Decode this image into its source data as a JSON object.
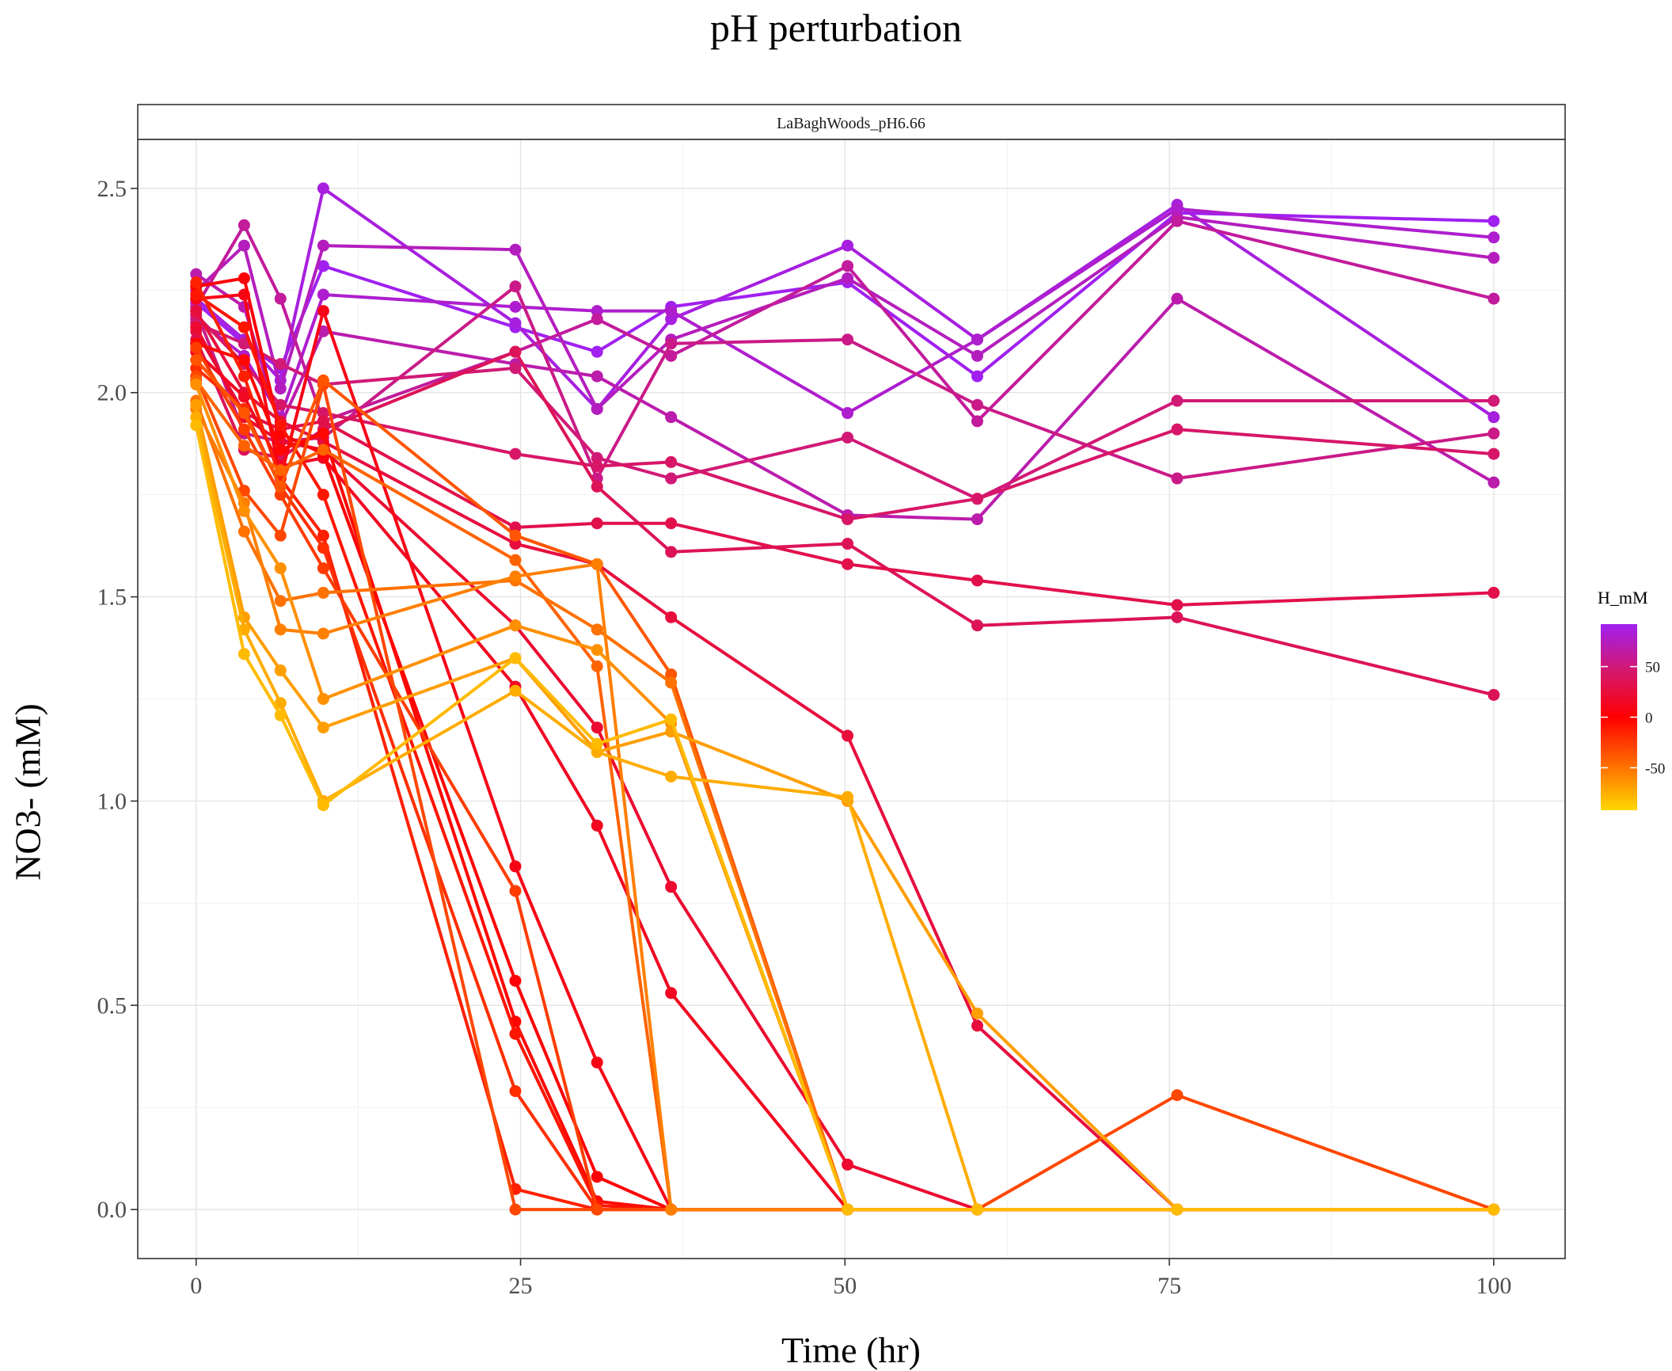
{
  "chart_data": {
    "type": "line",
    "title": "pH perturbation",
    "xlabel": "Time (hr)",
    "ylabel": "NO3- (mM)",
    "facet": "LaBaghWoods_pH6.66",
    "xlim": [
      -4.5,
      105.5
    ],
    "ylim": [
      -0.12,
      2.62
    ],
    "xticks": [
      0,
      25,
      50,
      75,
      100
    ],
    "yticks": [
      0.0,
      0.5,
      1.0,
      1.5,
      2.0,
      2.5
    ],
    "ytick_labels": [
      "0.0",
      "0.5",
      "1.0",
      "1.5",
      "2.0",
      "2.5"
    ],
    "grid": true,
    "legend": {
      "title": "H_mM",
      "position": "right",
      "type": "colorbar",
      "range": [
        -92,
        92
      ],
      "breaks": [
        50,
        0,
        -50
      ],
      "colors": [
        "#ffd700",
        "#ff6a00",
        "#ff0000",
        "#d4186e",
        "#a020f0"
      ]
    },
    "series": [
      {
        "h": 92,
        "x": [
          0,
          3.7,
          6.5,
          9.8,
          24.6,
          30.9,
          36.6,
          50.2,
          60.2,
          75.6,
          100
        ],
        "y": [
          2.22,
          2.12,
          2.06,
          2.31,
          2.16,
          2.1,
          2.21,
          2.27,
          2.04,
          2.44,
          2.42
        ]
      },
      {
        "h": 86,
        "x": [
          0,
          3.7,
          6.5,
          9.8,
          24.6,
          30.9,
          36.6,
          50.2,
          60.2,
          75.6,
          100
        ],
        "y": [
          2.23,
          2.13,
          2.03,
          2.5,
          2.17,
          1.96,
          2.18,
          2.36,
          2.13,
          2.46,
          1.94
        ]
      },
      {
        "h": 80,
        "x": [
          0,
          3.7,
          6.5,
          9.8,
          24.6,
          30.9,
          36.6,
          50.2,
          60.2,
          75.6,
          100
        ],
        "y": [
          2.18,
          2.09,
          1.94,
          2.24,
          2.21,
          2.2,
          2.2,
          1.95,
          2.13,
          2.45,
          2.38
        ]
      },
      {
        "h": 74,
        "x": [
          0,
          3.7,
          6.5,
          9.8,
          24.6,
          30.9,
          36.6,
          50.2,
          60.2,
          75.6,
          100
        ],
        "y": [
          2.25,
          2.36,
          2.01,
          2.36,
          2.35,
          1.96,
          2.13,
          2.28,
          2.09,
          2.43,
          2.33
        ]
      },
      {
        "h": 68,
        "x": [
          0,
          3.7,
          6.5,
          9.8,
          24.6,
          30.9,
          36.6,
          50.2,
          60.2,
          75.6,
          100
        ],
        "y": [
          2.29,
          2.21,
          1.92,
          2.15,
          2.07,
          2.04,
          1.94,
          1.7,
          1.69,
          2.23,
          1.78
        ]
      },
      {
        "h": 62,
        "x": [
          0,
          3.7,
          6.5,
          9.8,
          24.6,
          30.9,
          36.6,
          50.2,
          60.2,
          75.6,
          100
        ],
        "y": [
          2.21,
          2.41,
          2.23,
          1.93,
          2.1,
          2.18,
          2.09,
          2.31,
          1.93,
          2.42,
          2.23
        ]
      },
      {
        "h": 55,
        "x": [
          0,
          3.7,
          6.5,
          9.8,
          24.6,
          30.9,
          36.6,
          50.2,
          60.2,
          75.6,
          100
        ],
        "y": [
          2.2,
          1.9,
          1.88,
          1.89,
          2.26,
          1.79,
          2.12,
          2.13,
          1.97,
          1.79,
          1.9
        ]
      },
      {
        "h": 49,
        "x": [
          0,
          3.7,
          6.5,
          9.8,
          24.6,
          30.9,
          36.6,
          50.2,
          60.2,
          75.6,
          100
        ],
        "y": [
          2.17,
          2.12,
          2.07,
          2.02,
          2.06,
          1.84,
          1.79,
          1.89,
          1.74,
          1.98,
          1.98
        ]
      },
      {
        "h": 43,
        "x": [
          0,
          3.7,
          6.5,
          9.8,
          24.6,
          30.9,
          36.6,
          50.2,
          60.2,
          75.6,
          100
        ],
        "y": [
          2.19,
          2.07,
          1.97,
          1.95,
          1.85,
          1.82,
          1.83,
          1.69,
          1.74,
          1.91,
          1.85
        ]
      },
      {
        "h": 37,
        "x": [
          0,
          3.7,
          6.5,
          9.8,
          24.6,
          30.9,
          36.6,
          50.2,
          60.2,
          75.6,
          100
        ],
        "y": [
          2.13,
          1.86,
          1.84,
          1.91,
          2.1,
          1.77,
          1.61,
          1.63,
          1.43,
          1.45,
          1.26
        ]
      },
      {
        "h": 31,
        "x": [
          0,
          3.7,
          6.5,
          9.8,
          24.6,
          30.9,
          36.6,
          50.2,
          60.2,
          75.6,
          100
        ],
        "y": [
          2.15,
          1.95,
          1.91,
          1.93,
          1.67,
          1.68,
          1.68,
          1.58,
          1.54,
          1.48,
          1.51
        ]
      },
      {
        "h": 26,
        "x": [
          0,
          3.7,
          6.5,
          9.8,
          24.6,
          30.9,
          36.6,
          50.2,
          60.2,
          75.6,
          100
        ],
        "y": [
          2.2,
          2.0,
          1.93,
          1.88,
          1.63,
          1.58,
          1.45,
          1.16,
          0.45,
          0.0,
          0.0
        ]
      },
      {
        "h": 20,
        "x": [
          0,
          3.7,
          6.5,
          9.8,
          24.6,
          30.9,
          36.6,
          50.2,
          60.2,
          75.6,
          100
        ],
        "y": [
          2.16,
          1.94,
          1.88,
          1.86,
          1.43,
          1.18,
          0.79,
          0.11,
          0.0,
          0.0,
          0.0
        ]
      },
      {
        "h": 14,
        "x": [
          0,
          3.7,
          6.5,
          9.8,
          24.6,
          30.9,
          36.6,
          50.2,
          60.2,
          75.6,
          100
        ],
        "y": [
          2.1,
          1.99,
          1.82,
          1.84,
          1.28,
          0.94,
          0.53,
          0.0,
          0.0,
          0.0,
          0.0
        ]
      },
      {
        "h": 9,
        "x": [
          0,
          3.7,
          6.5,
          9.8,
          24.6,
          30.9,
          36.6,
          50.2,
          60.2,
          75.6,
          100
        ],
        "y": [
          2.23,
          2.24,
          1.79,
          2.2,
          0.84,
          0.36,
          0.0,
          0.0,
          0.0,
          0.0,
          0.0
        ]
      },
      {
        "h": 3,
        "x": [
          0,
          3.7,
          6.5,
          9.8,
          24.6,
          30.9,
          36.6,
          50.2,
          60.2,
          75.6,
          100
        ],
        "y": [
          2.26,
          2.28,
          1.9,
          1.85,
          0.56,
          0.08,
          0.0,
          0.0,
          0.0,
          0.0,
          0.0
        ]
      },
      {
        "h": -3,
        "x": [
          0,
          3.7,
          6.5,
          9.8,
          24.6,
          30.9,
          36.6,
          50.2,
          60.2,
          75.6,
          100
        ],
        "y": [
          2.12,
          2.08,
          1.86,
          1.9,
          0.46,
          0.02,
          0.0,
          0.0,
          0.0,
          0.0,
          0.0
        ]
      },
      {
        "h": -9,
        "x": [
          0,
          3.7,
          6.5,
          9.8,
          24.6,
          30.9,
          36.6,
          50.2,
          60.2,
          75.6,
          100
        ],
        "y": [
          2.24,
          2.16,
          1.92,
          1.75,
          0.43,
          0.01,
          0.0,
          0.0,
          0.0,
          0.0,
          0.0
        ]
      },
      {
        "h": -14,
        "x": [
          0,
          3.7,
          6.5,
          9.8,
          24.6,
          30.9,
          36.6,
          50.2,
          60.2,
          75.6,
          100
        ],
        "y": [
          2.27,
          2.04,
          1.79,
          1.65,
          0.05,
          0.0,
          0.0,
          0.0,
          0.0,
          0.0,
          0.0
        ]
      },
      {
        "h": -20,
        "x": [
          0,
          3.7,
          6.5,
          9.8,
          24.6,
          30.9,
          36.6,
          50.2,
          60.2,
          75.6,
          100
        ],
        "y": [
          2.06,
          1.96,
          1.77,
          1.62,
          0.29,
          0.0,
          0.0,
          0.0,
          0.0,
          0.0,
          0.0
        ]
      },
      {
        "h": -26,
        "x": [
          0,
          3.7,
          6.5,
          9.8,
          24.6,
          30.9,
          36.6,
          50.2,
          60.2,
          75.6,
          100
        ],
        "y": [
          2.11,
          1.91,
          1.75,
          1.57,
          0.78,
          0.0,
          0.0,
          0.0,
          0.0,
          0.0,
          0.0
        ]
      },
      {
        "h": -31,
        "x": [
          0,
          3.7,
          6.5,
          9.8,
          24.6,
          30.9,
          36.6,
          50.2,
          60.2,
          75.6,
          100
        ],
        "y": [
          2.04,
          1.76,
          1.65,
          2.02,
          0.0,
          0.0,
          0.0,
          0.0,
          0.0,
          0.28,
          0.0
        ]
      },
      {
        "h": -37,
        "x": [
          0,
          3.7,
          6.5,
          9.8,
          24.6,
          30.9,
          36.6,
          50.2,
          60.2,
          75.6,
          100
        ],
        "y": [
          2.08,
          1.95,
          1.77,
          2.03,
          1.65,
          1.58,
          1.31,
          0.0,
          0.0,
          0.0,
          0.0
        ]
      },
      {
        "h": -43,
        "x": [
          0,
          3.7,
          6.5,
          9.8,
          24.6,
          30.9,
          36.6,
          50.2,
          60.2,
          75.6,
          100
        ],
        "y": [
          2.03,
          1.87,
          1.81,
          1.86,
          1.59,
          1.33,
          0.0,
          0.0,
          0.0,
          0.0,
          0.0
        ]
      },
      {
        "h": -49,
        "x": [
          0,
          3.7,
          6.5,
          9.8,
          24.6,
          30.9,
          36.6,
          50.2,
          60.2,
          75.6,
          100
        ],
        "y": [
          1.98,
          1.66,
          1.49,
          1.51,
          1.54,
          1.42,
          1.29,
          0.0,
          0.0,
          0.0,
          0.0
        ]
      },
      {
        "h": -55,
        "x": [
          0,
          3.7,
          6.5,
          9.8,
          24.6,
          30.9,
          36.6,
          50.2,
          60.2,
          75.6,
          100
        ],
        "y": [
          1.96,
          1.73,
          1.42,
          1.41,
          1.55,
          1.58,
          0.0,
          0.0,
          0.0,
          0.0,
          0.0
        ]
      },
      {
        "h": -62,
        "x": [
          0,
          3.7,
          6.5,
          9.8,
          24.6,
          30.9,
          36.6,
          50.2,
          60.2,
          75.6,
          100
        ],
        "y": [
          2.02,
          1.71,
          1.57,
          1.25,
          1.43,
          1.37,
          1.19,
          0.0,
          0.0,
          0.0,
          0.0
        ]
      },
      {
        "h": -68,
        "x": [
          0,
          3.7,
          6.5,
          9.8,
          24.6,
          30.9,
          36.6,
          50.2,
          60.2,
          75.6,
          100
        ],
        "y": [
          1.97,
          1.45,
          1.32,
          1.18,
          1.35,
          1.12,
          1.17,
          1.0,
          0.48,
          0.0,
          0.0
        ]
      },
      {
        "h": -74,
        "x": [
          0,
          3.7,
          6.5,
          9.8,
          24.6,
          30.9,
          36.6,
          50.2,
          60.2,
          75.6,
          100
        ],
        "y": [
          1.94,
          1.42,
          1.24,
          1.0,
          1.27,
          1.12,
          1.06,
          1.01,
          0.0,
          0.0,
          0.0
        ]
      },
      {
        "h": -80,
        "x": [
          0,
          3.7,
          6.5,
          9.8,
          24.6,
          30.9,
          36.6,
          50.2,
          60.2,
          75.6,
          100
        ],
        "y": [
          1.92,
          1.36,
          1.21,
          0.99,
          1.35,
          1.14,
          1.2,
          0.0,
          0.0,
          0.0,
          0.0
        ]
      }
    ]
  }
}
